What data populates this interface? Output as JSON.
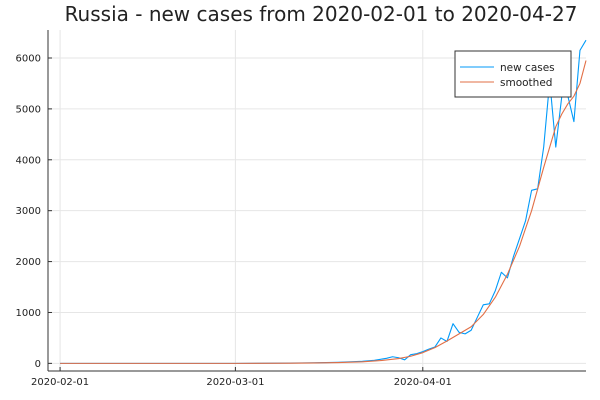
{
  "chart_data": {
    "type": "line",
    "title": "Russia - new cases from 2020-02-01 to 2020-04-27",
    "xlabel": "",
    "ylabel": "",
    "x_range": [
      "2020-01-30",
      "2020-04-28"
    ],
    "x_ticks": [
      "2020-02-01",
      "2020-03-01",
      "2020-04-01"
    ],
    "ylim": [
      -150,
      6550
    ],
    "y_ticks": [
      0,
      1000,
      2000,
      3000,
      4000,
      5000,
      6000
    ],
    "grid": true,
    "legend": "top-right",
    "series": [
      {
        "name": "new cases",
        "color": "#009af9",
        "points": [
          [
            "2020-02-01",
            0
          ],
          [
            "2020-02-15",
            0
          ],
          [
            "2020-03-01",
            0
          ],
          [
            "2020-03-10",
            5
          ],
          [
            "2020-03-14",
            10
          ],
          [
            "2020-03-18",
            20
          ],
          [
            "2020-03-20",
            30
          ],
          [
            "2020-03-22",
            40
          ],
          [
            "2020-03-24",
            60
          ],
          [
            "2020-03-26",
            100
          ],
          [
            "2020-03-27",
            130
          ],
          [
            "2020-03-28",
            110
          ],
          [
            "2020-03-29",
            70
          ],
          [
            "2020-03-30",
            170
          ],
          [
            "2020-03-31",
            190
          ],
          [
            "2020-04-01",
            230
          ],
          [
            "2020-04-02",
            280
          ],
          [
            "2020-04-03",
            320
          ],
          [
            "2020-04-04",
            500
          ],
          [
            "2020-04-05",
            430
          ],
          [
            "2020-04-06",
            780
          ],
          [
            "2020-04-07",
            610
          ],
          [
            "2020-04-08",
            580
          ],
          [
            "2020-04-09",
            650
          ],
          [
            "2020-04-10",
            900
          ],
          [
            "2020-04-11",
            1150
          ],
          [
            "2020-04-12",
            1170
          ],
          [
            "2020-04-13",
            1430
          ],
          [
            "2020-04-14",
            1790
          ],
          [
            "2020-04-15",
            1680
          ],
          [
            "2020-04-16",
            2100
          ],
          [
            "2020-04-17",
            2450
          ],
          [
            "2020-04-18",
            2800
          ],
          [
            "2020-04-19",
            3400
          ],
          [
            "2020-04-20",
            3430
          ],
          [
            "2020-04-21",
            4250
          ],
          [
            "2020-04-22",
            5550
          ],
          [
            "2020-04-23",
            4250
          ],
          [
            "2020-04-24",
            5250
          ],
          [
            "2020-04-25",
            5250
          ],
          [
            "2020-04-26",
            4750
          ],
          [
            "2020-04-27",
            6150
          ],
          [
            "2020-04-28",
            6350
          ]
        ]
      },
      {
        "name": "smoothed",
        "color": "#e26f46",
        "points": [
          [
            "2020-02-01",
            0
          ],
          [
            "2020-02-15",
            0
          ],
          [
            "2020-03-01",
            0
          ],
          [
            "2020-03-10",
            3
          ],
          [
            "2020-03-14",
            8
          ],
          [
            "2020-03-18",
            15
          ],
          [
            "2020-03-22",
            30
          ],
          [
            "2020-03-25",
            55
          ],
          [
            "2020-03-28",
            95
          ],
          [
            "2020-03-30",
            140
          ],
          [
            "2020-04-01",
            210
          ],
          [
            "2020-04-03",
            310
          ],
          [
            "2020-04-05",
            440
          ],
          [
            "2020-04-07",
            580
          ],
          [
            "2020-04-09",
            720
          ],
          [
            "2020-04-11",
            960
          ],
          [
            "2020-04-13",
            1300
          ],
          [
            "2020-04-15",
            1750
          ],
          [
            "2020-04-17",
            2300
          ],
          [
            "2020-04-19",
            3000
          ],
          [
            "2020-04-21",
            3850
          ],
          [
            "2020-04-23",
            4650
          ],
          [
            "2020-04-24",
            4900
          ],
          [
            "2020-04-25",
            5100
          ],
          [
            "2020-04-26",
            5250
          ],
          [
            "2020-04-27",
            5500
          ],
          [
            "2020-04-28",
            5950
          ]
        ]
      }
    ]
  }
}
